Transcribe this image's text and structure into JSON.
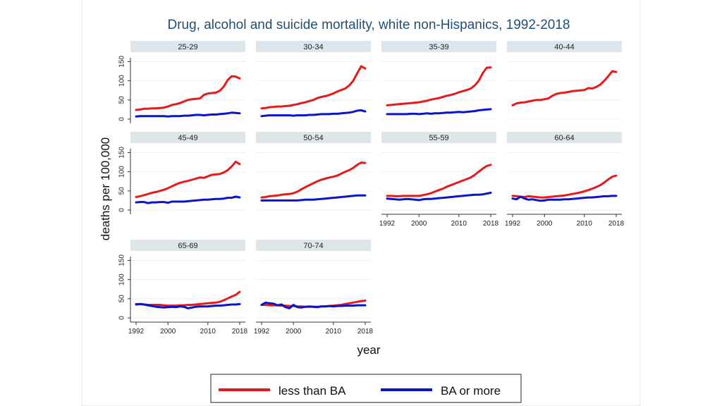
{
  "chart_data": {
    "type": "line",
    "title": "Drug, alcohol and suicide mortality, white non-Hispanics, 1992-2018",
    "ylabel": "deaths per 100,000",
    "xlabel": "year",
    "ylim": [
      0,
      160
    ],
    "yticks": [
      0,
      50,
      100,
      150
    ],
    "xlim": [
      1992,
      2018
    ],
    "xticks": [
      1992,
      2000,
      2010,
      2018
    ],
    "years": [
      1992,
      1993,
      1994,
      1995,
      1996,
      1997,
      1998,
      1999,
      2000,
      2001,
      2002,
      2003,
      2004,
      2005,
      2006,
      2007,
      2008,
      2009,
      2010,
      2011,
      2012,
      2013,
      2014,
      2015,
      2016,
      2017,
      2018
    ],
    "legend": [
      {
        "name": "less than BA",
        "color": "#e41a1c"
      },
      {
        "name": "BA or more",
        "color": "#0a14c8"
      }
    ],
    "panels": [
      {
        "label": "25-29",
        "less_than_ba": [
          24,
          25,
          27,
          27,
          28,
          28,
          29,
          30,
          33,
          37,
          39,
          42,
          46,
          50,
          52,
          53,
          54,
          63,
          67,
          68,
          69,
          74,
          85,
          102,
          112,
          111,
          106
        ],
        "ba_or_more": [
          7,
          8,
          8,
          8,
          8,
          8,
          8,
          8,
          7,
          8,
          8,
          8,
          9,
          9,
          10,
          11,
          11,
          10,
          11,
          12,
          12,
          13,
          14,
          15,
          17,
          16,
          15
        ]
      },
      {
        "label": "30-34",
        "less_than_ba": [
          28,
          29,
          31,
          32,
          33,
          33,
          34,
          35,
          37,
          39,
          42,
          44,
          47,
          50,
          55,
          58,
          60,
          63,
          67,
          72,
          76,
          80,
          88,
          100,
          120,
          138,
          132
        ],
        "ba_or_more": [
          8,
          9,
          10,
          10,
          10,
          10,
          10,
          10,
          9,
          10,
          10,
          10,
          11,
          11,
          12,
          13,
          13,
          13,
          14,
          14,
          15,
          16,
          17,
          19,
          22,
          23,
          20
        ]
      },
      {
        "label": "35-39",
        "less_than_ba": [
          36,
          37,
          38,
          39,
          40,
          41,
          42,
          43,
          44,
          46,
          48,
          51,
          53,
          55,
          58,
          61,
          63,
          66,
          70,
          73,
          76,
          80,
          88,
          100,
          120,
          134,
          135
        ],
        "ba_or_more": [
          13,
          13,
          13,
          13,
          13,
          13,
          14,
          14,
          13,
          14,
          15,
          14,
          15,
          15,
          16,
          17,
          17,
          18,
          19,
          18,
          19,
          20,
          21,
          23,
          24,
          25,
          26
        ]
      },
      {
        "label": "40-44",
        "less_than_ba": [
          36,
          41,
          43,
          44,
          46,
          48,
          50,
          50,
          52,
          54,
          61,
          66,
          68,
          69,
          71,
          73,
          74,
          75,
          76,
          81,
          80,
          84,
          90,
          100,
          112,
          125,
          123
        ]
      },
      {
        "label": "45-49",
        "less_than_ba": [
          34,
          36,
          39,
          42,
          45,
          47,
          50,
          53,
          57,
          62,
          67,
          71,
          74,
          76,
          79,
          82,
          85,
          84,
          88,
          92,
          93,
          94,
          98,
          104,
          114,
          126,
          120
        ],
        "ba_or_more": [
          20,
          21,
          21,
          18,
          20,
          20,
          21,
          21,
          19,
          22,
          22,
          22,
          22,
          23,
          24,
          25,
          26,
          27,
          27,
          28,
          29,
          29,
          30,
          32,
          32,
          35,
          33
        ]
      },
      {
        "label": "50-54",
        "less_than_ba": [
          33,
          34,
          36,
          37,
          38,
          40,
          41,
          42,
          44,
          48,
          54,
          60,
          65,
          70,
          75,
          79,
          82,
          85,
          87,
          90,
          95,
          100,
          104,
          110,
          118,
          124,
          123
        ],
        "ba_or_more": [
          25,
          25,
          25,
          25,
          25,
          25,
          25,
          25,
          25,
          25,
          26,
          27,
          27,
          27,
          28,
          29,
          30,
          31,
          32,
          33,
          34,
          35,
          36,
          37,
          38,
          38,
          38
        ]
      },
      {
        "label": "55-59",
        "less_than_ba": [
          37,
          37,
          36,
          36,
          37,
          37,
          37,
          37,
          37,
          39,
          41,
          44,
          48,
          52,
          56,
          61,
          65,
          69,
          73,
          77,
          81,
          85,
          92,
          100,
          108,
          115,
          118
        ],
        "ba_or_more": [
          30,
          29,
          28,
          27,
          28,
          29,
          28,
          27,
          26,
          28,
          29,
          29,
          30,
          31,
          32,
          33,
          34,
          35,
          36,
          37,
          38,
          39,
          40,
          40,
          41,
          43,
          45
        ]
      },
      {
        "label": "60-64",
        "less_than_ba": [
          37,
          36,
          35,
          34,
          36,
          35,
          34,
          33,
          33,
          34,
          35,
          36,
          37,
          38,
          40,
          42,
          44,
          46,
          49,
          52,
          56,
          60,
          65,
          72,
          80,
          87,
          90
        ],
        "ba_or_more": [
          30,
          28,
          35,
          30,
          27,
          28,
          26,
          24,
          25,
          27,
          27,
          27,
          27,
          28,
          28,
          29,
          30,
          31,
          32,
          33,
          33,
          34,
          35,
          36,
          36,
          37,
          37
        ]
      },
      {
        "label": "65-69",
        "less_than_ba": [
          36,
          36,
          35,
          34,
          34,
          34,
          34,
          33,
          32,
          32,
          32,
          33,
          33,
          34,
          34,
          35,
          36,
          37,
          38,
          39,
          40,
          42,
          46,
          51,
          56,
          60,
          68
        ],
        "ba_or_more": [
          35,
          36,
          35,
          33,
          31,
          29,
          28,
          27,
          28,
          29,
          28,
          30,
          29,
          25,
          27,
          29,
          30,
          30,
          30,
          31,
          32,
          32,
          33,
          34,
          35,
          35,
          36
        ]
      },
      {
        "label": "70-74",
        "less_than_ba": [
          34,
          34,
          33,
          33,
          33,
          32,
          32,
          31,
          31,
          30,
          30,
          29,
          29,
          29,
          29,
          30,
          30,
          31,
          32,
          33,
          34,
          36,
          38,
          40,
          42,
          44,
          45
        ],
        "ba_or_more": [
          34,
          40,
          38,
          37,
          33,
          35,
          28,
          25,
          34,
          28,
          27,
          29,
          30,
          29,
          28,
          30,
          30,
          31,
          30,
          31,
          31,
          32,
          32,
          32,
          33,
          33,
          33
        ]
      }
    ]
  }
}
